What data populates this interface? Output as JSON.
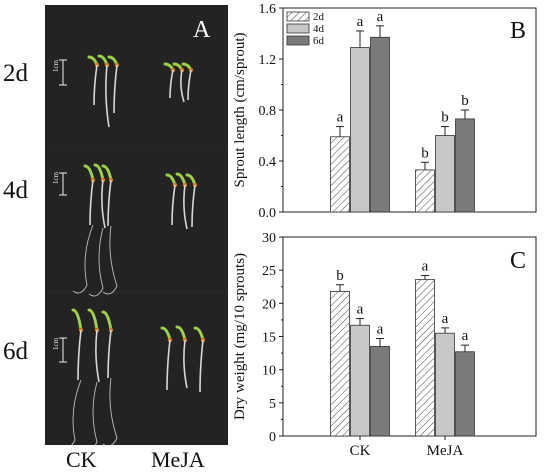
{
  "figure": {
    "row_labels": [
      "2d",
      "4d",
      "6d"
    ],
    "column_labels": [
      "CK",
      "MeJA"
    ],
    "panel_letters": {
      "photo": "A",
      "length": "B",
      "weight": "C"
    },
    "scale_bar": "1cm"
  },
  "chart_data": [
    {
      "type": "bar",
      "panel": "B",
      "categories": [
        "CK",
        "MeJA"
      ],
      "xlabel": "",
      "ylabel": "Sprout length (cm/sprout)",
      "ylim": [
        0,
        1.6
      ],
      "yticks": [
        "0.0",
        "0.4",
        "0.8",
        "1.2",
        "1.6"
      ],
      "legend_position": "top-left",
      "show_category_labels": false,
      "series": [
        {
          "name": "2d",
          "values": [
            0.59,
            0.33
          ],
          "errors": [
            0.08,
            0.06
          ],
          "letters": [
            "a",
            "b"
          ],
          "fill": "hatch"
        },
        {
          "name": "4d",
          "values": [
            1.29,
            0.6
          ],
          "errors": [
            0.13,
            0.07
          ],
          "letters": [
            "a",
            "b"
          ],
          "fill": "#c8c8c8"
        },
        {
          "name": "6d",
          "values": [
            1.37,
            0.73
          ],
          "errors": [
            0.09,
            0.07
          ],
          "letters": [
            "a",
            "b"
          ],
          "fill": "#7a7a7a"
        }
      ]
    },
    {
      "type": "bar",
      "panel": "C",
      "categories": [
        "CK",
        "MeJA"
      ],
      "xlabel": "",
      "ylabel": "Dry weight (mg/10 sprouts)",
      "ylim": [
        0,
        30
      ],
      "yticks": [
        "0",
        "5",
        "10",
        "15",
        "20",
        "25",
        "30"
      ],
      "show_category_labels": true,
      "series": [
        {
          "name": "2d",
          "values": [
            21.8,
            23.6
          ],
          "errors": [
            1.0,
            0.6
          ],
          "letters": [
            "b",
            "a"
          ],
          "fill": "hatch"
        },
        {
          "name": "4d",
          "values": [
            16.7,
            15.5
          ],
          "errors": [
            1.0,
            0.8
          ],
          "letters": [
            "a",
            "a"
          ],
          "fill": "#c8c8c8"
        },
        {
          "name": "6d",
          "values": [
            13.5,
            12.7
          ],
          "errors": [
            1.2,
            1.0
          ],
          "letters": [
            "a",
            "a"
          ],
          "fill": "#7a7a7a"
        }
      ]
    }
  ]
}
